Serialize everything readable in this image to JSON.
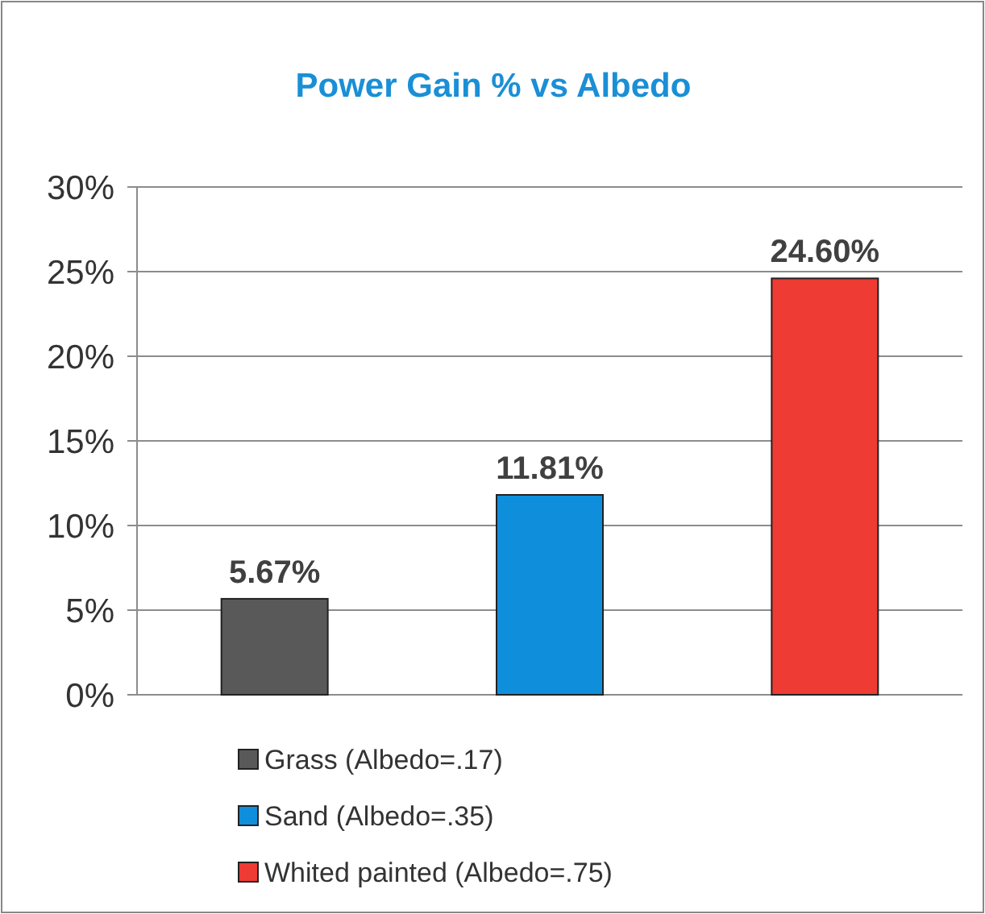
{
  "chart_data": {
    "type": "bar",
    "title": "Power Gain % vs Albedo",
    "categories": [
      null,
      null,
      null
    ],
    "series": [
      {
        "name": "Grass (Albedo=.17)",
        "color": "#595959",
        "values": [
          5.67,
          null,
          null
        ],
        "value_labels": [
          "5.67%",
          null,
          null
        ]
      },
      {
        "name": "Sand (Albedo=.35)",
        "color": "#0f8fdb",
        "values": [
          null,
          11.81,
          null
        ],
        "value_labels": [
          null,
          "11.81%",
          null
        ]
      },
      {
        "name": "Whited painted (Albedo=.75)",
        "color": "#ee3b33",
        "values": [
          null,
          null,
          24.6
        ],
        "value_labels": [
          null,
          null,
          "24.60%"
        ]
      }
    ],
    "ylim": [
      0,
      30
    ],
    "yticks": [
      {
        "value": 0,
        "label": "0%"
      },
      {
        "value": 5,
        "label": "5%"
      },
      {
        "value": 10,
        "label": "10%"
      },
      {
        "value": 15,
        "label": "15%"
      },
      {
        "value": 20,
        "label": "20%"
      },
      {
        "value": 25,
        "label": "25%"
      },
      {
        "value": 30,
        "label": "30%"
      }
    ],
    "grid": "y",
    "legend": "bottom"
  }
}
